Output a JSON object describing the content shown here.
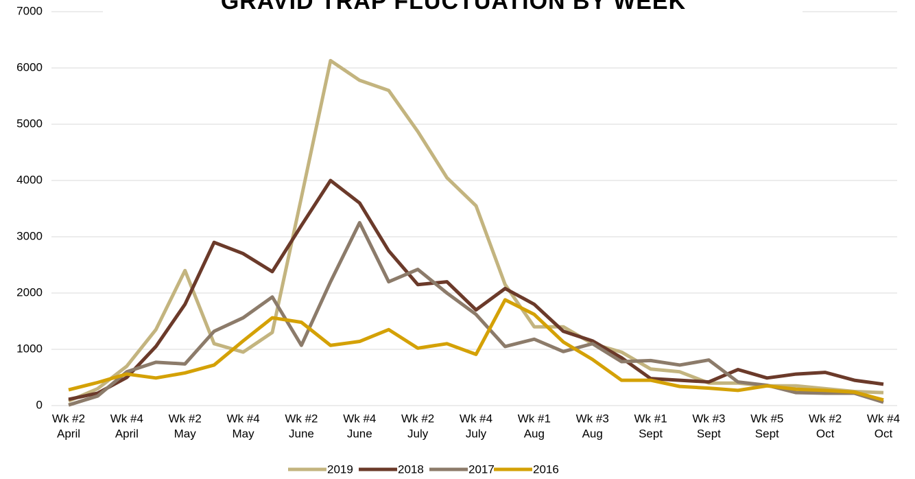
{
  "chart_data": {
    "type": "line",
    "title": "GRAVID TRAP FLUCTUATION BY WEEK",
    "categories": [
      [
        "Wk #2",
        "April"
      ],
      null,
      [
        "Wk #4",
        "April"
      ],
      null,
      [
        "Wk #2",
        "May"
      ],
      null,
      [
        "Wk #4",
        "May"
      ],
      null,
      [
        "Wk #2",
        "June"
      ],
      null,
      [
        "Wk #4",
        "June"
      ],
      null,
      [
        "Wk #2",
        "July"
      ],
      null,
      [
        "Wk #4",
        "July"
      ],
      null,
      [
        "Wk #1",
        "Aug"
      ],
      null,
      [
        "Wk #3",
        "Aug"
      ],
      null,
      [
        "Wk #1",
        "Sept"
      ],
      null,
      [
        "Wk #3",
        "Sept"
      ],
      null,
      [
        "Wk #5",
        "Sept"
      ],
      null,
      [
        "Wk #2",
        "Oct"
      ],
      null,
      [
        "Wk #4",
        "Oct"
      ]
    ],
    "series": [
      {
        "name": "2019",
        "color": "#c3b47f",
        "values": [
          80,
          300,
          700,
          1350,
          2400,
          1100,
          950,
          1300,
          3700,
          6130,
          5780,
          5600,
          4870,
          4050,
          3550,
          2150,
          1400,
          1400,
          1100,
          950,
          650,
          600,
          400,
          400,
          350,
          350,
          300,
          250,
          230
        ]
      },
      {
        "name": "2018",
        "color": "#6b3a2a",
        "values": [
          110,
          220,
          500,
          1050,
          1800,
          2900,
          2700,
          2380,
          3200,
          4000,
          3600,
          2750,
          2150,
          2200,
          1700,
          2080,
          1800,
          1320,
          1150,
          850,
          480,
          450,
          420,
          640,
          490,
          560,
          590,
          450,
          380
        ]
      },
      {
        "name": "2017",
        "color": "#8c7b6a",
        "values": [
          10,
          170,
          600,
          770,
          740,
          1320,
          1560,
          1930,
          1070,
          2200,
          3250,
          2200,
          2420,
          2000,
          1620,
          1050,
          1180,
          960,
          1100,
          780,
          800,
          720,
          810,
          420,
          360,
          230,
          220,
          220,
          60
        ]
      },
      {
        "name": "2016",
        "color": "#d4a106",
        "values": [
          280,
          410,
          560,
          490,
          580,
          720,
          1150,
          1560,
          1480,
          1070,
          1140,
          1350,
          1020,
          1100,
          910,
          1880,
          1620,
          1130,
          820,
          450,
          450,
          340,
          310,
          270,
          350,
          290,
          270,
          240,
          100
        ]
      }
    ],
    "ylim": [
      0,
      7000
    ],
    "yticks": [
      0,
      1000,
      2000,
      3000,
      4000,
      5000,
      6000,
      7000
    ],
    "grid": true,
    "legend": "bottom"
  }
}
